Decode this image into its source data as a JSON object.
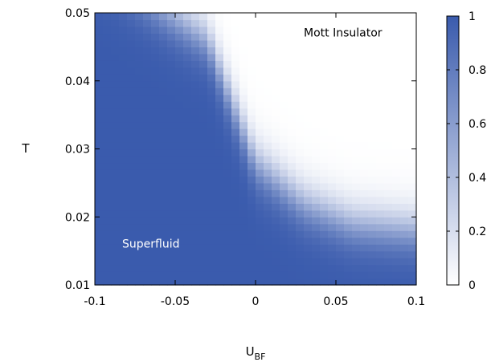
{
  "chart_data": {
    "type": "heatmap",
    "xlabel": "U",
    "xlabel_sub": "BF",
    "ylabel": "T",
    "xlim": [
      -0.1,
      0.1
    ],
    "ylim": [
      0.01,
      0.05
    ],
    "xticks": [
      -0.1,
      -0.05,
      0,
      0.05,
      0.1
    ],
    "xtick_labels": [
      "-0.1",
      "-0.05",
      "0",
      "0.05",
      "0.1"
    ],
    "yticks": [
      0.01,
      0.02,
      0.03,
      0.04,
      0.05
    ],
    "ytick_labels": [
      "0.01",
      "0.02",
      "0.03",
      "0.04",
      "0.05"
    ],
    "colorbar": {
      "range": [
        0,
        1
      ],
      "ticks": [
        0,
        0.2,
        0.4,
        0.6,
        0.8,
        1
      ],
      "tick_labels": [
        "0",
        "0.2",
        "0.4",
        "0.6",
        "0.8",
        "1"
      ],
      "low_color": "#ffffff",
      "high_color": "#3a5bad"
    },
    "grid": false,
    "grid_resolution": [
      40,
      40
    ],
    "boundary": {
      "description": "transition where value is 0.5",
      "points": [
        {
          "U": -0.1,
          "T": 0.058
        },
        {
          "U": -0.06,
          "T": 0.051
        },
        {
          "U": -0.03,
          "T": 0.046
        },
        {
          "U": -0.015,
          "T": 0.037
        },
        {
          "U": 0.0,
          "T": 0.028
        },
        {
          "U": 0.03,
          "T": 0.022
        },
        {
          "U": 0.06,
          "T": 0.019
        },
        {
          "U": 0.1,
          "T": 0.018
        }
      ],
      "width_T": 0.0045
    },
    "annotations": [
      {
        "text": "Mott Insulator",
        "U": 0.03,
        "T": 0.0465,
        "color": "#000000"
      },
      {
        "text": "Superfluid",
        "U": -0.083,
        "T": 0.0155,
        "color": "#ffffff"
      }
    ]
  }
}
